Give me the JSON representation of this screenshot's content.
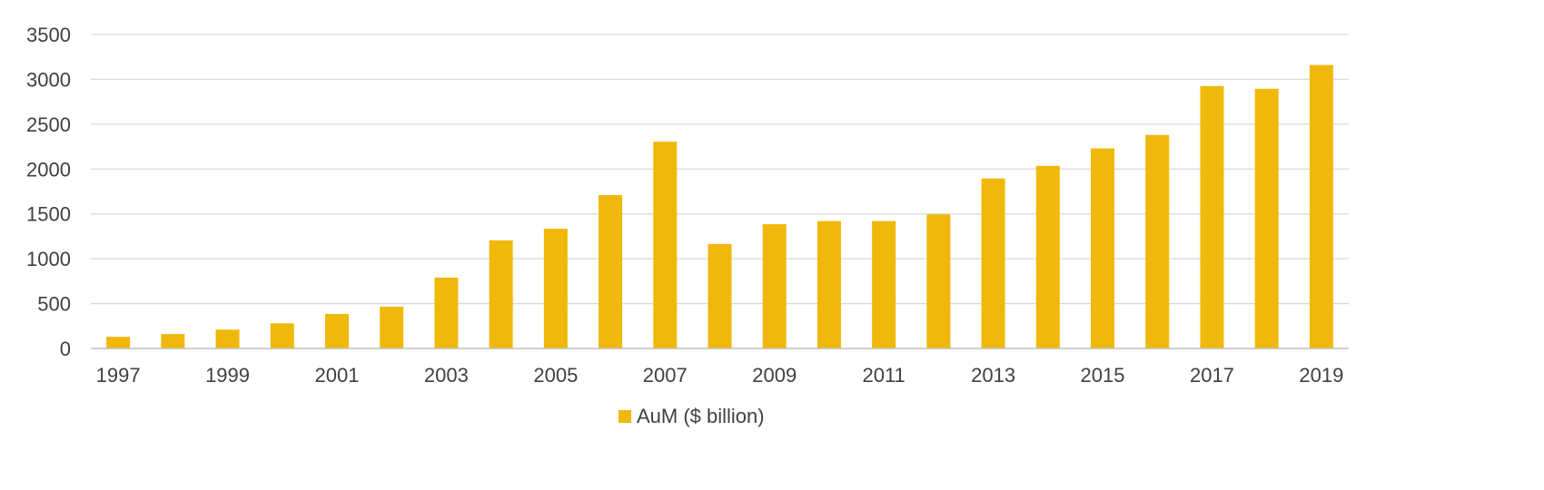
{
  "chart_data": {
    "type": "bar",
    "categories": [
      "1997",
      "1998",
      "1999",
      "2000",
      "2001",
      "2002",
      "2003",
      "2004",
      "2005",
      "2006",
      "2007",
      "2008",
      "2009",
      "2010",
      "2011",
      "2012",
      "2013",
      "2014",
      "2015",
      "2016",
      "2017",
      "2018",
      "2019"
    ],
    "x_tick_labels": [
      "1997",
      "1999",
      "2001",
      "2003",
      "2005",
      "2007",
      "2009",
      "2011",
      "2013",
      "2015",
      "2017",
      "2019"
    ],
    "series": [
      {
        "name": "AuM ($ billion)",
        "color": "#F0B80A",
        "values": [
          130,
          160,
          210,
          280,
          385,
          465,
          790,
          1205,
          1335,
          1710,
          2305,
          1165,
          1385,
          1420,
          1420,
          1495,
          1895,
          2035,
          2230,
          2380,
          2925,
          2895,
          3160
        ]
      }
    ],
    "ylim": [
      0,
      3500
    ],
    "y_ticks": [
      0,
      500,
      1000,
      1500,
      2000,
      2500,
      3000,
      3500
    ],
    "grid": true,
    "legend_position": "bottom",
    "title": "",
    "xlabel": "",
    "ylabel": ""
  }
}
